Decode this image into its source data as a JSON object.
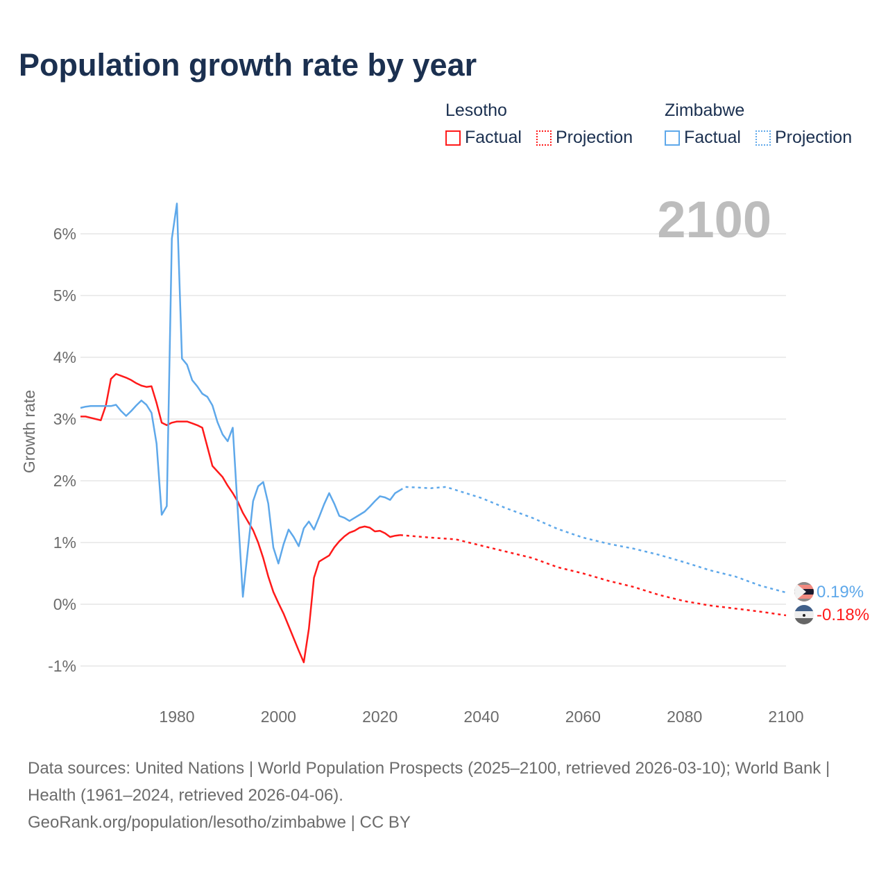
{
  "title": "Population growth rate by year",
  "legend": {
    "groups": [
      {
        "name": "Lesotho",
        "factual": "Factual",
        "projection": "Projection",
        "color": "#ff1a1a"
      },
      {
        "name": "Zimbabwe",
        "factual": "Factual",
        "projection": "Projection",
        "color": "#5ea8ea"
      }
    ]
  },
  "current_year": "2100",
  "end_labels": {
    "zimbabwe": "0.19%",
    "lesotho": "-0.18%"
  },
  "footer": {
    "sources": "Data sources: United Nations | World Population Prospects (2025–2100, retrieved 2026-03-10); World Bank | Health (1961–2024, retrieved 2026-04-06).",
    "credit": "GeoRank.org/population/lesotho/zimbabwe | CC BY"
  },
  "chart_data": {
    "type": "line",
    "title": "Population growth rate by year",
    "xlabel": "",
    "ylabel": "Growth rate",
    "xlim": [
      1961,
      2100
    ],
    "ylim": [
      -1.25,
      6.5
    ],
    "xticks": [
      1980,
      2000,
      2020,
      2040,
      2060,
      2080,
      2100
    ],
    "yticks": [
      -1,
      0,
      1,
      2,
      3,
      4,
      5,
      6
    ],
    "ytick_labels": [
      "-1%",
      "0%",
      "1%",
      "2%",
      "3%",
      "4%",
      "5%",
      "6%"
    ],
    "grid": true,
    "legend_placement": "top-right",
    "series": [
      {
        "name": "Lesotho Factual",
        "color": "#ff1a1a",
        "style": "solid",
        "x": [
          1961,
          1962,
          1963,
          1964,
          1965,
          1966,
          1967,
          1968,
          1969,
          1970,
          1971,
          1972,
          1973,
          1974,
          1975,
          1976,
          1977,
          1978,
          1979,
          1980,
          1981,
          1982,
          1983,
          1984,
          1985,
          1986,
          1987,
          1988,
          1989,
          1990,
          1991,
          1992,
          1993,
          1994,
          1995,
          1996,
          1997,
          1998,
          1999,
          2000,
          2001,
          2002,
          2003,
          2004,
          2005,
          2006,
          2007,
          2008,
          2009,
          2010,
          2011,
          2012,
          2013,
          2014,
          2015,
          2016,
          2017,
          2018,
          2019,
          2020,
          2021,
          2022,
          2023,
          2024
        ],
        "y": [
          3.04,
          3.04,
          3.02,
          3.0,
          2.98,
          3.22,
          3.65,
          3.73,
          3.7,
          3.67,
          3.63,
          3.58,
          3.54,
          3.52,
          3.53,
          3.26,
          2.94,
          2.9,
          2.94,
          2.96,
          2.96,
          2.96,
          2.93,
          2.9,
          2.86,
          2.55,
          2.24,
          2.15,
          2.06,
          1.92,
          1.8,
          1.66,
          1.48,
          1.34,
          1.2,
          1.0,
          0.75,
          0.45,
          0.2,
          0.02,
          -0.15,
          -0.35,
          -0.55,
          -0.75,
          -0.94,
          -0.4,
          0.43,
          0.69,
          0.74,
          0.79,
          0.92,
          1.02,
          1.1,
          1.16,
          1.19,
          1.24,
          1.26,
          1.24,
          1.18,
          1.19,
          1.15,
          1.09,
          1.11,
          1.12
        ]
      },
      {
        "name": "Lesotho Projection",
        "color": "#ff1a1a",
        "style": "dotted",
        "x": [
          2024,
          2030,
          2035,
          2040,
          2045,
          2050,
          2055,
          2060,
          2065,
          2070,
          2075,
          2080,
          2085,
          2090,
          2095,
          2100
        ],
        "y": [
          1.12,
          1.08,
          1.05,
          0.95,
          0.85,
          0.75,
          0.6,
          0.5,
          0.38,
          0.28,
          0.15,
          0.05,
          -0.02,
          -0.07,
          -0.12,
          -0.18
        ]
      },
      {
        "name": "Zimbabwe Factual",
        "color": "#5ea8ea",
        "style": "solid",
        "x": [
          1961,
          1962,
          1963,
          1964,
          1965,
          1966,
          1967,
          1968,
          1969,
          1970,
          1971,
          1972,
          1973,
          1974,
          1975,
          1976,
          1977,
          1978,
          1979,
          1980,
          1981,
          1982,
          1983,
          1984,
          1985,
          1986,
          1987,
          1988,
          1989,
          1990,
          1991,
          1992,
          1993,
          1994,
          1995,
          1996,
          1997,
          1998,
          1999,
          2000,
          2001,
          2002,
          2003,
          2004,
          2005,
          2006,
          2007,
          2008,
          2009,
          2010,
          2011,
          2012,
          2013,
          2014,
          2015,
          2016,
          2017,
          2018,
          2019,
          2020,
          2021,
          2022,
          2023,
          2024
        ],
        "y": [
          3.18,
          3.2,
          3.21,
          3.21,
          3.21,
          3.21,
          3.21,
          3.23,
          3.13,
          3.05,
          3.13,
          3.22,
          3.3,
          3.23,
          3.1,
          2.6,
          1.45,
          1.59,
          5.92,
          6.49,
          3.98,
          3.88,
          3.63,
          3.53,
          3.41,
          3.36,
          3.22,
          2.95,
          2.75,
          2.64,
          2.86,
          1.5,
          0.12,
          0.9,
          1.67,
          1.91,
          1.98,
          1.63,
          0.92,
          0.66,
          0.97,
          1.21,
          1.09,
          0.94,
          1.23,
          1.34,
          1.21,
          1.41,
          1.62,
          1.8,
          1.63,
          1.43,
          1.4,
          1.35,
          1.4,
          1.45,
          1.5,
          1.58,
          1.67,
          1.75,
          1.73,
          1.69,
          1.8,
          1.85
        ]
      },
      {
        "name": "Zimbabwe Projection",
        "color": "#5ea8ea",
        "style": "dotted",
        "x": [
          2024,
          2025,
          2030,
          2033,
          2035,
          2040,
          2045,
          2050,
          2055,
          2060,
          2065,
          2070,
          2075,
          2080,
          2085,
          2090,
          2095,
          2100
        ],
        "y": [
          1.85,
          1.9,
          1.88,
          1.9,
          1.85,
          1.72,
          1.55,
          1.4,
          1.22,
          1.08,
          0.98,
          0.9,
          0.8,
          0.68,
          0.55,
          0.45,
          0.3,
          0.19
        ]
      }
    ]
  }
}
